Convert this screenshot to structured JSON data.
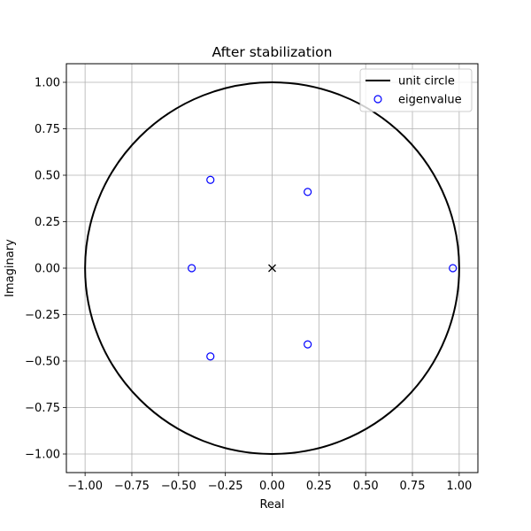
{
  "chart_data": {
    "type": "scatter",
    "title": "After stabilization",
    "xlabel": "Real",
    "ylabel": "Imaginary",
    "xlim": [
      -1.1,
      1.1
    ],
    "ylim": [
      -1.1,
      1.1
    ],
    "xticks": [
      -1.0,
      -0.75,
      -0.5,
      -0.25,
      0.0,
      0.25,
      0.5,
      0.75,
      1.0
    ],
    "xtick_labels": [
      "−1.00",
      "−0.75",
      "−0.50",
      "−0.25",
      "0.00",
      "0.25",
      "0.50",
      "0.75",
      "1.00"
    ],
    "yticks": [
      -1.0,
      -0.75,
      -0.5,
      -0.25,
      0.0,
      0.25,
      0.5,
      0.75,
      1.0
    ],
    "ytick_labels": [
      "−1.00",
      "−0.75",
      "−0.50",
      "−0.25",
      "0.00",
      "0.25",
      "0.50",
      "0.75",
      "1.00"
    ],
    "grid": true,
    "legend_position": "top-right",
    "series": [
      {
        "name": "unit circle",
        "kind": "line",
        "shape": "circle",
        "center": [
          0,
          0
        ],
        "radius": 1.0,
        "color": "#000000"
      },
      {
        "name": "eigenvalue",
        "kind": "scatter",
        "marker": "open-circle",
        "color": "#0000ff",
        "x": [
          0.966,
          0.19,
          0.19,
          -0.33,
          -0.33,
          -0.43
        ],
        "y": [
          0.0,
          0.41,
          -0.41,
          0.475,
          -0.475,
          0.0
        ]
      }
    ],
    "annotations": [
      {
        "marker": "x",
        "x": 0.0,
        "y": 0.0,
        "color": "#000000"
      }
    ]
  }
}
